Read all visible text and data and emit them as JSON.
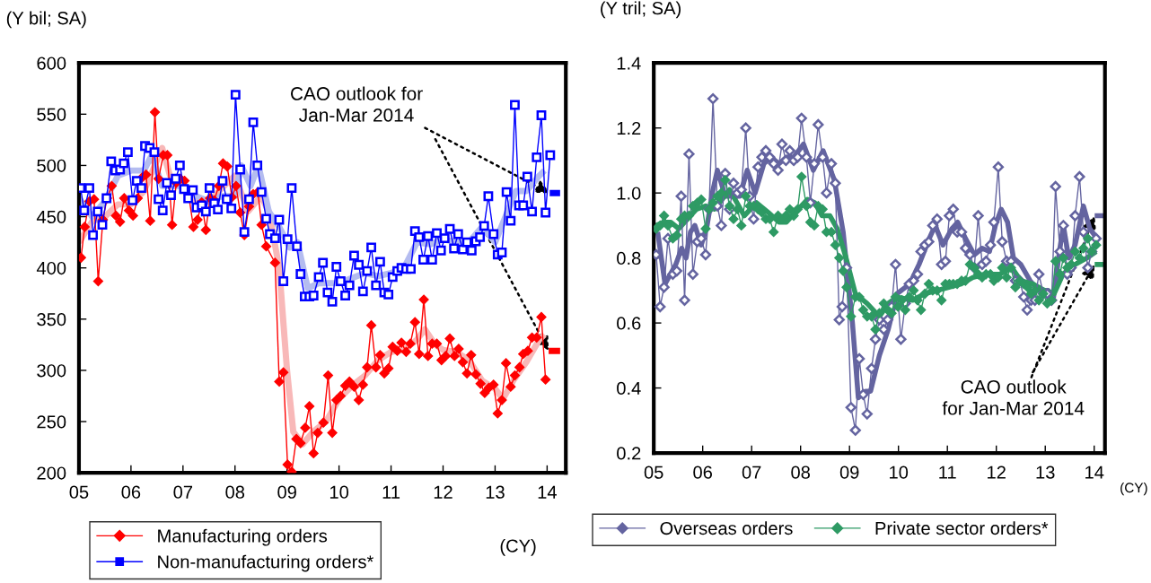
{
  "chart_data": [
    {
      "type": "line",
      "ylabel": "(Y bil; SA)",
      "xlabel": "(CY)",
      "xlim": [
        2005,
        2014.36
      ],
      "ylim": [
        200,
        600
      ],
      "yticks": [
        200,
        250,
        300,
        350,
        400,
        450,
        500,
        550,
        600
      ],
      "xticks": [
        {
          "value": 2005,
          "label": "05"
        },
        {
          "value": 2006,
          "label": "06"
        },
        {
          "value": 2007,
          "label": "07"
        },
        {
          "value": 2008,
          "label": "08"
        },
        {
          "value": 2009,
          "label": "09"
        },
        {
          "value": 2010,
          "label": "10"
        },
        {
          "value": 2011,
          "label": "11"
        },
        {
          "value": 2012,
          "label": "12"
        },
        {
          "value": 2013,
          "label": "13"
        },
        {
          "value": 2014,
          "label": "14"
        }
      ],
      "legend": "bottom",
      "annotations": [
        {
          "text": "CAO outlook for\nJan-Mar 2014",
          "x": 2014.05,
          "y": 473
        }
      ],
      "series": [
        {
          "color": "#f8b8b8",
          "marker": "none",
          "line_style": "solid",
          "x": [
            2005.0,
            2005.25,
            2005.5,
            2005.75,
            2006.0,
            2006.25,
            2006.6,
            2006.75,
            2007.0,
            2007.25,
            2007.5,
            2007.75,
            2008.0,
            2008.25,
            2008.5,
            2008.65,
            2008.85,
            2009.0,
            2009.12,
            2009.3,
            2009.5,
            2009.75,
            2010.0,
            2010.25,
            2010.5,
            2010.75,
            2011.0,
            2011.25,
            2011.5,
            2011.65,
            2011.85,
            2012.0,
            2012.25,
            2012.5,
            2012.75,
            2013.0,
            2013.15,
            2013.35,
            2013.6,
            2013.85,
            2013.95
          ],
          "values": [
            425,
            445,
            450,
            462,
            462,
            475,
            517,
            490,
            480,
            465,
            465,
            478,
            490,
            455,
            470,
            455,
            400,
            300,
            240,
            228,
            240,
            250,
            272,
            285,
            295,
            310,
            318,
            320,
            330,
            340,
            325,
            320,
            318,
            310,
            290,
            282,
            272,
            290,
            308,
            330,
            335
          ]
        },
        {
          "color": "#b4bcf0",
          "marker": "none",
          "line_style": "solid",
          "x": [
            2005.0,
            2005.25,
            2005.5,
            2005.75,
            2006.0,
            2006.25,
            2006.4,
            2006.6,
            2006.85,
            2007.0,
            2007.25,
            2007.5,
            2007.75,
            2008.0,
            2008.12,
            2008.3,
            2008.45,
            2008.65,
            2008.85,
            2009.05,
            2009.2,
            2009.4,
            2009.6,
            2009.85,
            2010.0,
            2010.25,
            2010.5,
            2010.75,
            2011.0,
            2011.25,
            2011.5,
            2011.75,
            2012.0,
            2012.25,
            2012.5,
            2012.75,
            2013.0,
            2013.2,
            2013.4,
            2013.6,
            2013.85,
            2013.95
          ],
          "values": [
            468,
            450,
            465,
            490,
            495,
            495,
            510,
            480,
            480,
            480,
            470,
            465,
            470,
            470,
            500,
            480,
            500,
            455,
            440,
            420,
            425,
            380,
            385,
            385,
            385,
            390,
            395,
            392,
            395,
            400,
            425,
            423,
            428,
            425,
            425,
            440,
            425,
            450,
            475,
            475,
            490,
            495
          ]
        },
        {
          "name": "Manufacturing orders",
          "color": "#ff0000",
          "marker": "diamond",
          "line_style": "solid",
          "x": [
            2005.04,
            2005.11,
            2005.2,
            2005.29,
            2005.37,
            2005.46,
            2005.54,
            2005.63,
            2005.71,
            2005.79,
            2005.87,
            2005.96,
            2006.04,
            2006.13,
            2006.21,
            2006.29,
            2006.37,
            2006.46,
            2006.53,
            2006.62,
            2006.7,
            2006.79,
            2006.87,
            2006.95,
            2007.03,
            2007.11,
            2007.2,
            2007.28,
            2007.36,
            2007.44,
            2007.52,
            2007.6,
            2007.69,
            2007.77,
            2007.85,
            2007.94,
            2008.02,
            2008.1,
            2008.18,
            2008.27,
            2008.35,
            2008.44,
            2008.51,
            2008.6,
            2008.77,
            2008.85,
            2008.93,
            2009.01,
            2009.09,
            2009.18,
            2009.26,
            2009.35,
            2009.43,
            2009.51,
            2009.59,
            2009.7,
            2009.79,
            2009.87,
            2009.95,
            2010.03,
            2010.12,
            2010.2,
            2010.29,
            2010.38,
            2010.46,
            2010.54,
            2010.62,
            2010.71,
            2010.79,
            2010.87,
            2010.95,
            2011.03,
            2011.12,
            2011.2,
            2011.29,
            2011.37,
            2011.46,
            2011.54,
            2011.63,
            2011.71,
            2011.79,
            2011.88,
            2011.97,
            2012.05,
            2012.13,
            2012.22,
            2012.3,
            2012.38,
            2012.46,
            2012.54,
            2012.63,
            2012.72,
            2012.8,
            2012.88,
            2012.97,
            2013.05,
            2013.13,
            2013.21,
            2013.3,
            2013.38,
            2013.47,
            2013.54,
            2013.63,
            2013.71,
            2013.8,
            2013.89,
            2013.97
          ],
          "values": [
            410,
            440,
            465,
            467,
            387,
            447,
            468,
            480,
            451,
            445,
            468,
            456,
            451,
            468,
            488,
            491,
            446,
            552,
            487,
            510,
            510,
            442,
            483,
            487,
            485,
            471,
            440,
            447,
            464,
            437,
            468,
            466,
            480,
            502,
            499,
            469,
            480,
            454,
            432,
            460,
            472,
            474,
            442,
            421,
            405,
            289,
            298,
            208,
            201,
            233,
            229,
            244,
            265,
            219,
            239,
            249,
            295,
            239,
            271,
            275,
            285,
            289,
            284,
            271,
            286,
            303,
            344,
            303,
            315,
            297,
            302,
            323,
            319,
            327,
            318,
            326,
            347,
            316,
            369,
            314,
            326,
            326,
            310,
            314,
            331,
            314,
            321,
            308,
            297,
            315,
            296,
            287,
            278,
            283,
            286,
            258,
            271,
            307,
            284,
            295,
            303,
            316,
            319,
            332,
            332,
            352,
            291
          ]
        },
        {
          "name": "Non-manufacturing orders*",
          "color": "#0000ff",
          "marker": "square",
          "line_style": "solid",
          "x": [
            2005.03,
            2005.1,
            2005.2,
            2005.27,
            2005.36,
            2005.45,
            2005.53,
            2005.62,
            2005.7,
            2005.79,
            2005.86,
            2005.94,
            2006.03,
            2006.11,
            2006.2,
            2006.27,
            2006.36,
            2006.45,
            2006.53,
            2006.61,
            2006.69,
            2006.77,
            2006.86,
            2006.94,
            2007.02,
            2007.1,
            2007.19,
            2007.26,
            2007.36,
            2007.44,
            2007.51,
            2007.6,
            2007.67,
            2007.76,
            2007.84,
            2007.93,
            2008.01,
            2008.1,
            2008.18,
            2008.27,
            2008.35,
            2008.43,
            2008.51,
            2008.6,
            2008.67,
            2008.77,
            2008.85,
            2008.93,
            2009.01,
            2009.09,
            2009.19,
            2009.26,
            2009.34,
            2009.43,
            2009.51,
            2009.61,
            2009.69,
            2009.78,
            2009.87,
            2009.95,
            2010.03,
            2010.12,
            2010.2,
            2010.29,
            2010.38,
            2010.46,
            2010.54,
            2010.62,
            2010.71,
            2010.79,
            2010.87,
            2010.95,
            2011.03,
            2011.12,
            2011.2,
            2011.29,
            2011.38,
            2011.46,
            2011.54,
            2011.62,
            2011.71,
            2011.79,
            2011.88,
            2011.96,
            2012.03,
            2012.13,
            2012.21,
            2012.29,
            2012.38,
            2012.46,
            2012.55,
            2012.63,
            2012.71,
            2012.79,
            2012.87,
            2012.97,
            2013.05,
            2013.13,
            2013.22,
            2013.3,
            2013.38,
            2013.46,
            2013.54,
            2013.62,
            2013.71,
            2013.8,
            2013.89,
            2013.97,
            2014.06
          ],
          "values": [
            478,
            456,
            478,
            432,
            455,
            442,
            468,
            504,
            495,
            496,
            502,
            513,
            466,
            485,
            478,
            519,
            517,
            513,
            467,
            456,
            483,
            471,
            487,
            500,
            477,
            468,
            476,
            459,
            461,
            455,
            478,
            463,
            457,
            485,
            467,
            458,
            569,
            496,
            435,
            467,
            542,
            500,
            474,
            448,
            433,
            429,
            447,
            387,
            428,
            478,
            421,
            394,
            372,
            372,
            373,
            391,
            405,
            376,
            367,
            401,
            387,
            373,
            383,
            412,
            403,
            377,
            397,
            420,
            383,
            406,
            376,
            374,
            391,
            397,
            400,
            399,
            399,
            436,
            430,
            408,
            431,
            408,
            434,
            417,
            429,
            438,
            419,
            433,
            418,
            425,
            417,
            426,
            430,
            441,
            470,
            433,
            413,
            415,
            474,
            446,
            559,
            461,
            461,
            489,
            455,
            508,
            549,
            454,
            510
          ]
        },
        {
          "color": "#ff0000",
          "marker": "none",
          "line_style": "solid",
          "x": [
            2014.03,
            2014.25
          ],
          "values": [
            319,
            319
          ]
        },
        {
          "color": "#0000ff",
          "marker": "none",
          "line_style": "solid",
          "x": [
            2014.05,
            2014.25
          ],
          "values": [
            473,
            473
          ]
        }
      ]
    },
    {
      "type": "line",
      "ylabel": "(Y tril; SA)",
      "xlabel": "(CY)",
      "xlim": [
        2005,
        2014.22
      ],
      "ylim": [
        0.2,
        1.4
      ],
      "yticks": [
        0.2,
        0.4,
        0.6,
        0.8,
        {
          "value": 1.0,
          "label": "1.0"
        },
        1.2,
        1.4
      ],
      "xticks": [
        {
          "value": 2005,
          "label": "05"
        },
        {
          "value": 2006,
          "label": "06"
        },
        {
          "value": 2007,
          "label": "07"
        },
        {
          "value": 2008,
          "label": "08"
        },
        {
          "value": 2009,
          "label": "09"
        },
        {
          "value": 2010,
          "label": "10"
        },
        {
          "value": 2011,
          "label": "11"
        },
        {
          "value": 2012,
          "label": "12"
        },
        {
          "value": 2013,
          "label": "13"
        },
        {
          "value": 2014,
          "label": "14"
        }
      ],
      "legend": "bottom",
      "annotations": [
        {
          "text": "CAO outlook\nfor Jan-Mar 2014",
          "x": 2014.01,
          "y": 0.93
        }
      ],
      "series": [
        {
          "color": "#6464a0",
          "marker": "none",
          "line_style": "solid",
          "x": [
            2005.08,
            2005.23,
            2005.45,
            2005.57,
            2005.66,
            2005.75,
            2005.84,
            2005.97,
            2006.09,
            2006.21,
            2006.3,
            2006.46,
            2006.61,
            2006.76,
            2006.91,
            2007.07,
            2007.25,
            2007.4,
            2007.56,
            2007.71,
            2007.86,
            2008.06,
            2008.26,
            2008.46,
            2008.69,
            2008.87,
            2009.06,
            2009.18,
            2009.33,
            2009.43,
            2009.61,
            2009.79,
            2009.97,
            2010.23,
            2010.42,
            2010.63,
            2010.75,
            2010.91,
            2011.09,
            2011.21,
            2011.37,
            2011.55,
            2011.71,
            2011.86,
            2011.98,
            2012.1,
            2012.23,
            2012.35,
            2012.5,
            2012.69,
            2012.87,
            2013.06,
            2013.17,
            2013.29,
            2013.37,
            2013.48,
            2013.61,
            2013.78,
            2013.91,
            2014.01
          ],
          "values": [
            0.88,
            0.72,
            0.78,
            0.83,
            0.8,
            0.88,
            0.9,
            0.84,
            0.9,
            1.01,
            1.07,
            0.99,
            0.99,
            0.99,
            1.07,
            1.0,
            1.09,
            1.11,
            1.09,
            1.11,
            1.11,
            1.15,
            1.07,
            1.13,
            1.04,
            0.88,
            0.6,
            0.37,
            0.39,
            0.39,
            0.5,
            0.58,
            0.69,
            0.72,
            0.78,
            0.86,
            0.9,
            0.84,
            0.89,
            0.91,
            0.86,
            0.81,
            0.83,
            0.82,
            0.9,
            0.95,
            0.91,
            0.8,
            0.78,
            0.73,
            0.7,
            0.7,
            0.68,
            0.82,
            0.9,
            0.8,
            0.84,
            0.96,
            0.89,
            0.87
          ]
        },
        {
          "color": "#2e9a64",
          "marker": "none",
          "line_style": "solid",
          "x": [
            2005.05,
            2005.2,
            2005.35,
            2005.51,
            2005.69,
            2005.87,
            2006.06,
            2006.24,
            2006.55,
            2006.85,
            2007.1,
            2007.34,
            2007.56,
            2007.71,
            2007.89,
            2008.14,
            2008.29,
            2008.44,
            2008.6,
            2008.75,
            2008.93,
            2009.12,
            2009.36,
            2009.61,
            2009.79,
            2009.97,
            2010.29,
            2010.54,
            2010.79,
            2011.03,
            2011.28,
            2011.52,
            2011.77,
            2012.07,
            2012.32,
            2012.5,
            2012.75,
            2012.99,
            2013.18,
            2013.36,
            2013.61,
            2013.85,
            2014.04
          ],
          "values": [
            0.9,
            0.91,
            0.91,
            0.89,
            0.92,
            0.95,
            0.96,
            0.95,
            1.01,
            0.93,
            0.97,
            0.94,
            0.91,
            0.91,
            0.94,
            0.98,
            0.97,
            0.93,
            0.93,
            0.89,
            0.8,
            0.69,
            0.66,
            0.62,
            0.66,
            0.68,
            0.67,
            0.69,
            0.7,
            0.71,
            0.72,
            0.74,
            0.75,
            0.75,
            0.77,
            0.73,
            0.72,
            0.7,
            0.69,
            0.75,
            0.78,
            0.8,
            0.82
          ]
        },
        {
          "name": "Overseas orders",
          "color": "#6464a0",
          "marker": "diamond",
          "line_style": "solid",
          "x": [
            2005.05,
            2005.13,
            2005.21,
            2005.29,
            2005.39,
            2005.47,
            2005.56,
            2005.63,
            2005.72,
            2005.8,
            2005.89,
            2005.97,
            2006.06,
            2006.13,
            2006.21,
            2006.3,
            2006.38,
            2006.46,
            2006.55,
            2006.63,
            2006.71,
            2006.79,
            2006.88,
            2006.96,
            2007.04,
            2007.13,
            2007.21,
            2007.29,
            2007.37,
            2007.45,
            2007.54,
            2007.62,
            2007.7,
            2007.78,
            2007.86,
            2007.94,
            2008.02,
            2008.12,
            2008.2,
            2008.28,
            2008.36,
            2008.45,
            2008.53,
            2008.63,
            2008.71,
            2008.79,
            2008.85,
            2008.94,
            2009.03,
            2009.12,
            2009.2,
            2009.28,
            2009.36,
            2009.45,
            2009.53,
            2009.61,
            2009.7,
            2009.78,
            2009.86,
            2009.94,
            2010.05,
            2010.14,
            2010.22,
            2010.31,
            2010.39,
            2010.46,
            2010.54,
            2010.62,
            2010.7,
            2010.79,
            2010.88,
            2010.96,
            2011.04,
            2011.12,
            2011.2,
            2011.29,
            2011.37,
            2011.46,
            2011.55,
            2011.63,
            2011.71,
            2011.79,
            2011.88,
            2011.95,
            2012.04,
            2012.12,
            2012.21,
            2012.3,
            2012.39,
            2012.48,
            2012.56,
            2012.63,
            2012.71,
            2012.79,
            2012.87,
            2012.96,
            2013.04,
            2013.13,
            2013.21,
            2013.3,
            2013.37,
            2013.45,
            2013.53,
            2013.61,
            2013.7,
            2013.78,
            2013.87,
            2013.95,
            2014.04
          ],
          "values": [
            0.81,
            0.65,
            0.71,
            0.86,
            0.75,
            0.76,
            0.99,
            0.67,
            1.12,
            0.75,
            0.85,
            0.86,
            0.81,
            0.95,
            1.29,
            0.96,
            0.9,
            1.06,
            0.95,
            1.03,
            1.0,
            1.01,
            1.2,
            0.99,
            0.92,
            1.08,
            1.11,
            1.13,
            1.11,
            1.09,
            1.07,
            1.15,
            1.1,
            1.13,
            1.1,
            1.11,
            1.23,
            1.11,
            0.97,
            1.09,
            1.21,
            1.11,
            1.0,
            1.09,
            1.03,
            0.61,
            0.65,
            0.77,
            0.34,
            0.27,
            0.49,
            0.38,
            0.32,
            0.46,
            0.55,
            0.61,
            0.58,
            0.61,
            0.65,
            0.78,
            0.55,
            0.66,
            0.72,
            0.73,
            0.75,
            0.82,
            0.84,
            0.85,
            0.9,
            0.92,
            0.78,
            0.79,
            0.93,
            0.95,
            0.88,
            0.88,
            0.83,
            0.81,
            0.77,
            0.93,
            0.78,
            0.79,
            0.84,
            0.91,
            1.08,
            0.85,
            0.79,
            0.79,
            0.73,
            0.73,
            0.68,
            0.64,
            0.67,
            0.67,
            0.75,
            0.69,
            0.69,
            0.67,
            1.02,
            0.82,
            0.9,
            0.75,
            0.77,
            0.93,
            1.05,
            0.88,
            0.77,
            0.82,
            0.86
          ]
        },
        {
          "name": "Private sector orders*",
          "color": "#2e9a64",
          "marker": "diamond",
          "line_style": "solid",
          "x": [
            2005.05,
            2005.13,
            2005.21,
            2005.29,
            2005.39,
            2005.47,
            2005.56,
            2005.63,
            2005.72,
            2005.8,
            2005.89,
            2005.97,
            2006.06,
            2006.13,
            2006.21,
            2006.3,
            2006.38,
            2006.46,
            2006.55,
            2006.63,
            2006.71,
            2006.79,
            2006.88,
            2006.96,
            2007.04,
            2007.13,
            2007.21,
            2007.29,
            2007.37,
            2007.45,
            2007.54,
            2007.62,
            2007.7,
            2007.78,
            2007.86,
            2007.94,
            2008.02,
            2008.12,
            2008.2,
            2008.28,
            2008.36,
            2008.45,
            2008.53,
            2008.63,
            2008.71,
            2008.79,
            2008.87,
            2008.94,
            2009.03,
            2009.12,
            2009.2,
            2009.28,
            2009.36,
            2009.45,
            2009.53,
            2009.61,
            2009.7,
            2009.78,
            2009.86,
            2009.94,
            2009.99,
            2010.07,
            2010.14,
            2010.22,
            2010.31,
            2010.39,
            2010.46,
            2010.54,
            2010.62,
            2010.7,
            2010.79,
            2010.88,
            2010.96,
            2011.04,
            2011.12,
            2011.2,
            2011.29,
            2011.37,
            2011.46,
            2011.55,
            2011.63,
            2011.71,
            2011.79,
            2011.88,
            2011.95,
            2012.04,
            2012.12,
            2012.21,
            2012.3,
            2012.39,
            2012.48,
            2012.56,
            2012.64,
            2012.71,
            2012.79,
            2012.87,
            2012.96,
            2013.04,
            2013.13,
            2013.21,
            2013.3,
            2013.37,
            2013.45,
            2013.53,
            2013.61,
            2013.7,
            2013.78,
            2013.87,
            2013.95,
            2014.04
          ],
          "values": [
            0.89,
            0.9,
            0.93,
            0.9,
            0.86,
            0.87,
            0.92,
            0.93,
            0.93,
            0.96,
            0.97,
            0.98,
            0.89,
            0.95,
            0.97,
            0.99,
            1.0,
            1.04,
            0.96,
            0.92,
            0.95,
            0.9,
            0.99,
            0.96,
            0.96,
            0.95,
            0.94,
            0.92,
            0.92,
            0.88,
            0.93,
            0.92,
            0.93,
            0.95,
            0.93,
            0.95,
            1.05,
            0.96,
            0.91,
            0.9,
            0.96,
            0.95,
            0.88,
            0.88,
            0.84,
            0.8,
            0.76,
            0.71,
            0.62,
            0.68,
            0.68,
            0.64,
            0.62,
            0.62,
            0.58,
            0.63,
            0.66,
            0.64,
            0.63,
            0.68,
            0.65,
            0.67,
            0.64,
            0.68,
            0.7,
            0.67,
            0.64,
            0.69,
            0.72,
            0.7,
            0.7,
            0.67,
            0.72,
            0.72,
            0.72,
            0.72,
            0.73,
            0.73,
            0.78,
            0.77,
            0.75,
            0.74,
            0.75,
            0.75,
            0.73,
            0.74,
            0.77,
            0.74,
            0.77,
            0.71,
            0.73,
            0.72,
            0.71,
            0.69,
            0.7,
            0.67,
            0.69,
            0.66,
            0.67,
            0.79,
            0.75,
            0.8,
            0.77,
            0.78,
            0.82,
            0.8,
            0.83,
            0.86,
            0.82,
            0.84
          ]
        },
        {
          "color": "#6464a0",
          "marker": "none",
          "line_style": "solid",
          "x": [
            2014.01,
            2014.22
          ],
          "values": [
            0.93,
            0.93
          ]
        },
        {
          "color": "#2e9a64",
          "marker": "none",
          "line_style": "solid",
          "x": [
            2014.01,
            2014.22
          ],
          "values": [
            0.78,
            0.78
          ]
        }
      ]
    }
  ]
}
